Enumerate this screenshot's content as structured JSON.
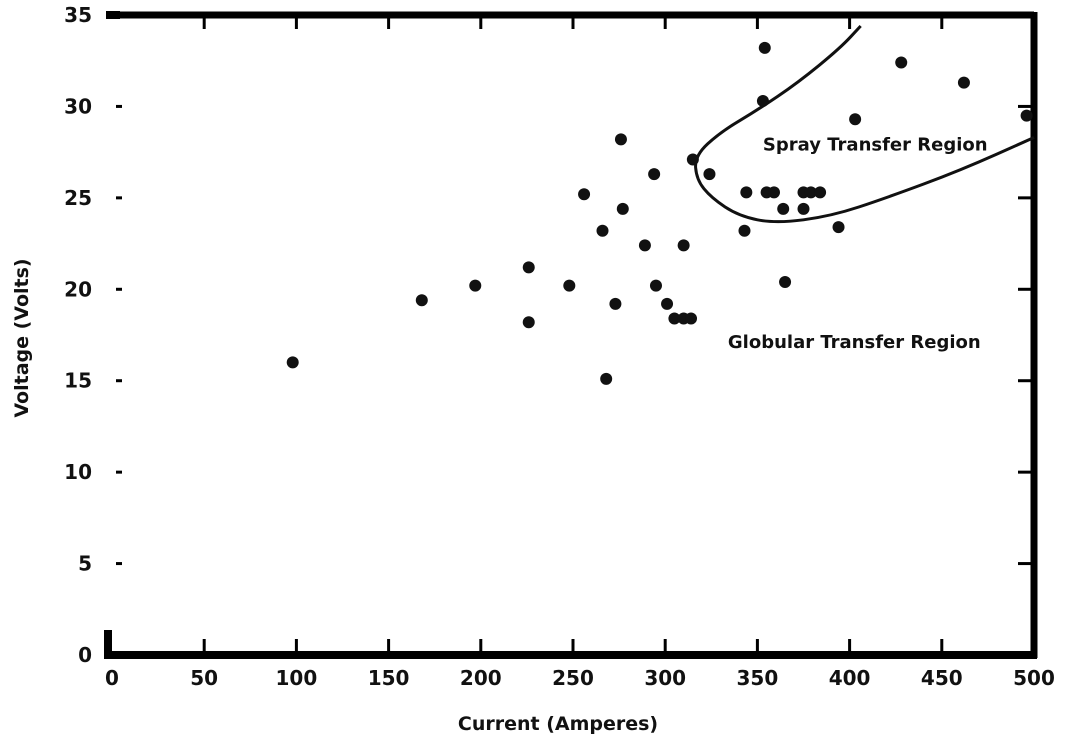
{
  "chart_data": {
    "type": "scatter",
    "title": "",
    "xlabel": "Current (Amperes)",
    "ylabel": "Voltage (Volts)",
    "xlim": [
      0,
      500
    ],
    "ylim": [
      0,
      35
    ],
    "x_ticks": [
      0,
      50,
      100,
      150,
      200,
      250,
      300,
      350,
      400,
      450,
      500
    ],
    "y_ticks": [
      0,
      5,
      10,
      15,
      20,
      25,
      30,
      35
    ],
    "x_tick_labels": [
      "0",
      "50",
      "100",
      "150",
      "200",
      "250",
      "300",
      "350",
      "400",
      "450",
      "500"
    ],
    "y_tick_labels": [
      "0",
      "5",
      "10",
      "15",
      "20",
      "25",
      "30",
      "35"
    ],
    "grid": false,
    "series": [
      {
        "points": [
          {
            "x": 98,
            "y": 16.0
          },
          {
            "x": 168,
            "y": 19.4
          },
          {
            "x": 197,
            "y": 20.2
          },
          {
            "x": 226,
            "y": 21.2
          },
          {
            "x": 226,
            "y": 18.2
          },
          {
            "x": 248,
            "y": 20.2
          },
          {
            "x": 256,
            "y": 25.2
          },
          {
            "x": 266,
            "y": 23.2
          },
          {
            "x": 268,
            "y": 15.1
          },
          {
            "x": 273,
            "y": 19.2
          },
          {
            "x": 276,
            "y": 28.2
          },
          {
            "x": 277,
            "y": 24.4
          },
          {
            "x": 289,
            "y": 22.4
          },
          {
            "x": 294,
            "y": 26.3
          },
          {
            "x": 295,
            "y": 20.2
          },
          {
            "x": 301,
            "y": 19.2
          },
          {
            "x": 305,
            "y": 18.4
          },
          {
            "x": 310,
            "y": 18.4
          },
          {
            "x": 314,
            "y": 18.4
          },
          {
            "x": 310,
            "y": 22.4
          },
          {
            "x": 315,
            "y": 27.1
          },
          {
            "x": 324,
            "y": 26.3
          },
          {
            "x": 343,
            "y": 23.2
          },
          {
            "x": 344,
            "y": 25.3
          },
          {
            "x": 353,
            "y": 30.3
          },
          {
            "x": 354,
            "y": 33.2
          },
          {
            "x": 355,
            "y": 25.3
          },
          {
            "x": 359,
            "y": 25.3
          },
          {
            "x": 364,
            "y": 24.4
          },
          {
            "x": 365,
            "y": 20.4
          },
          {
            "x": 375,
            "y": 24.4
          },
          {
            "x": 375,
            "y": 25.3
          },
          {
            "x": 379,
            "y": 25.3
          },
          {
            "x": 384,
            "y": 25.3
          },
          {
            "x": 394,
            "y": 23.4
          },
          {
            "x": 403,
            "y": 29.3
          },
          {
            "x": 428,
            "y": 32.4
          },
          {
            "x": 462,
            "y": 31.3
          },
          {
            "x": 496,
            "y": 29.5
          }
        ]
      }
    ],
    "annotations": [
      {
        "text": "Spray Transfer Region",
        "x": 353,
        "y": 27.6
      },
      {
        "text": "Globular Transfer Region",
        "x": 334,
        "y": 16.8
      }
    ],
    "region_boundary": [
      {
        "x": 406,
        "y": 34.4
      },
      {
        "x": 395,
        "y": 33.2
      },
      {
        "x": 372,
        "y": 31.3
      },
      {
        "x": 350,
        "y": 29.8
      },
      {
        "x": 330,
        "y": 28.6
      },
      {
        "x": 316,
        "y": 27.3
      },
      {
        "x": 317,
        "y": 26.0
      },
      {
        "x": 325,
        "y": 25.0
      },
      {
        "x": 340,
        "y": 24.0
      },
      {
        "x": 360,
        "y": 23.6
      },
      {
        "x": 390,
        "y": 24.0
      },
      {
        "x": 420,
        "y": 25.0
      },
      {
        "x": 460,
        "y": 26.5
      },
      {
        "x": 500,
        "y": 28.3
      }
    ],
    "colors": {
      "points": "#111111",
      "axes": "#000000",
      "boundary": "#111111"
    }
  }
}
